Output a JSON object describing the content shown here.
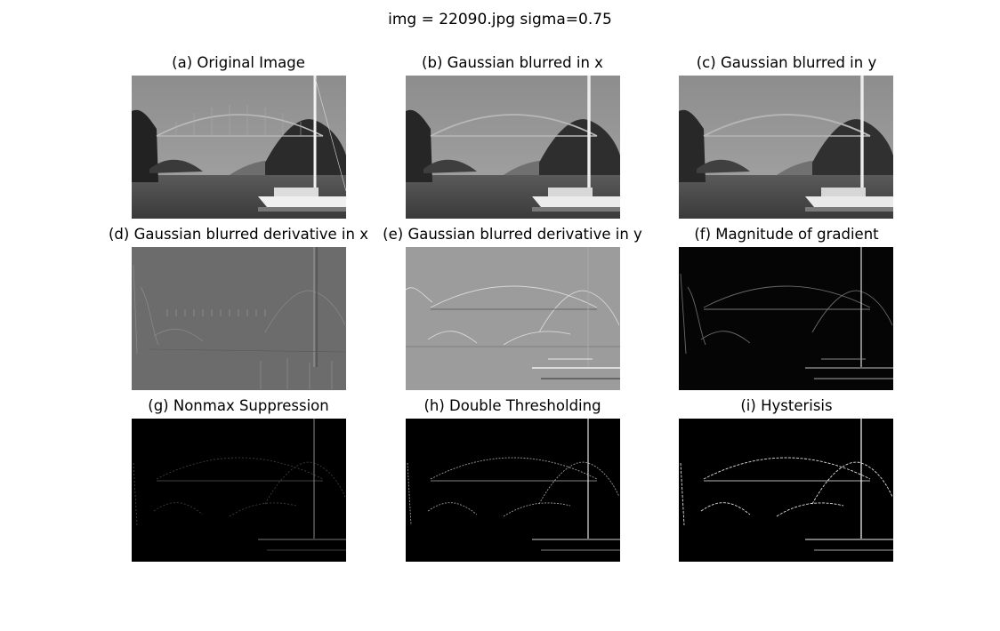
{
  "figure": {
    "suptitle": "img = 22090.jpg sigma=0.75"
  },
  "panels": [
    {
      "title": "(a) Original Image",
      "kind": "photo"
    },
    {
      "title": "(b) Gaussian blurred in x",
      "kind": "photo"
    },
    {
      "title": "(c) Gaussian blurred in y",
      "kind": "photo"
    },
    {
      "title": "(d) Gaussian blurred derivative in x",
      "kind": "deriv-x"
    },
    {
      "title": "(e) Gaussian blurred derivative in y",
      "kind": "deriv-y"
    },
    {
      "title": "(f) Magnitude of gradient",
      "kind": "magnitude"
    },
    {
      "title": "(g) Nonmax Suppression",
      "kind": "nonmax"
    },
    {
      "title": "(h) Double Thresholding",
      "kind": "threshold"
    },
    {
      "title": "(i) Hysterisis",
      "kind": "hysteresis"
    }
  ]
}
